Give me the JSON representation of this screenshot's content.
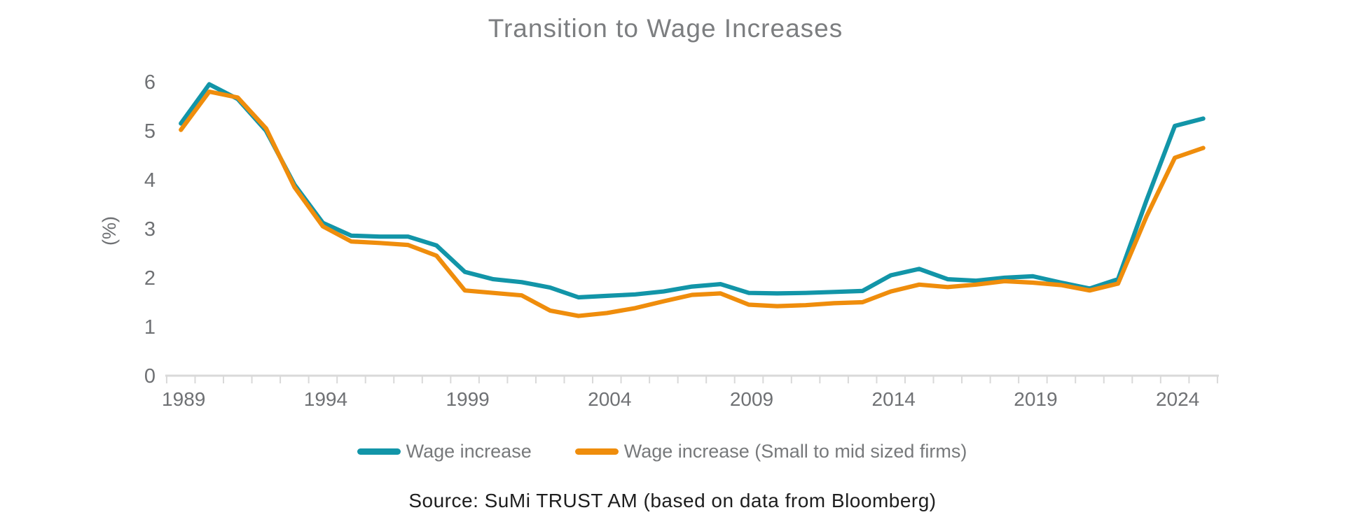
{
  "chart_data": {
    "type": "line",
    "title": "Transition to Wage Increases",
    "ylabel": "(%)",
    "xlabel": "",
    "x": [
      1989,
      1990,
      1991,
      1992,
      1993,
      1994,
      1995,
      1996,
      1997,
      1998,
      1999,
      2000,
      2001,
      2002,
      2003,
      2004,
      2005,
      2006,
      2007,
      2008,
      2009,
      2010,
      2011,
      2012,
      2013,
      2014,
      2015,
      2016,
      2017,
      2018,
      2019,
      2020,
      2021,
      2022,
      2023,
      2024,
      2025
    ],
    "series": [
      {
        "name": "Wage increase",
        "color": "#1295a8",
        "values": [
          5.15,
          5.95,
          5.65,
          5.0,
          3.9,
          3.12,
          2.86,
          2.84,
          2.84,
          2.66,
          2.12,
          1.97,
          1.91,
          1.8,
          1.6,
          1.63,
          1.66,
          1.72,
          1.82,
          1.87,
          1.69,
          1.68,
          1.69,
          1.71,
          1.73,
          2.05,
          2.18,
          1.97,
          1.94,
          2.0,
          2.03,
          1.9,
          1.78,
          1.97,
          3.58,
          5.1,
          5.25
        ]
      },
      {
        "name": "Wage increase (Small to mid sized firms)",
        "color": "#ef8d0c",
        "values": [
          5.02,
          5.8,
          5.68,
          5.05,
          3.85,
          3.05,
          2.74,
          2.71,
          2.67,
          2.45,
          1.74,
          1.69,
          1.64,
          1.33,
          1.22,
          1.28,
          1.38,
          1.52,
          1.65,
          1.68,
          1.45,
          1.42,
          1.44,
          1.48,
          1.5,
          1.72,
          1.86,
          1.81,
          1.86,
          1.93,
          1.9,
          1.85,
          1.74,
          1.88,
          3.25,
          4.45,
          4.65
        ]
      }
    ],
    "ylim": [
      0,
      6
    ],
    "yticks": [
      0,
      1,
      2,
      3,
      4,
      5,
      6
    ],
    "xtick_labels": [
      "1989",
      "1994",
      "1999",
      "2004",
      "2009",
      "2014",
      "2019",
      "2024"
    ],
    "grid": false,
    "legend_position": "bottom"
  },
  "colors": {
    "axis_line": "#d9d9d9",
    "tick_mark": "#d9d9d9",
    "title_text": "#7c7e80",
    "axis_text": "#6f7174",
    "legend_text": "#77797b",
    "source_text": "#1e1e1e",
    "background": "#ffffff"
  },
  "source_note": "Source: SuMi TRUST AM (based on data from Bloomberg)"
}
